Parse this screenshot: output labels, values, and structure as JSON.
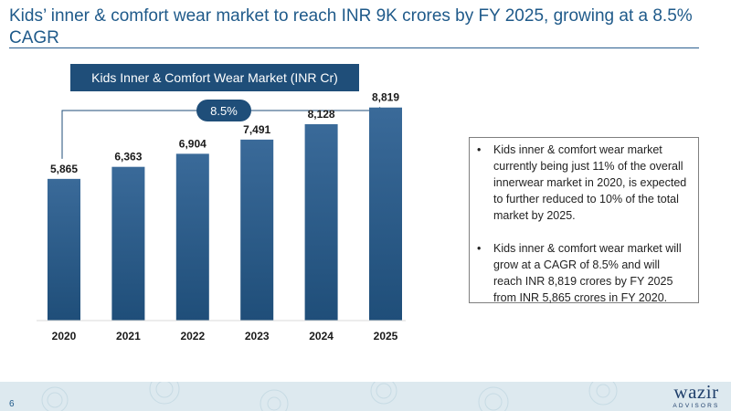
{
  "title": "Kids’ inner & comfort wear market to reach INR 9K crores by FY 2025, growing at a 8.5% CAGR",
  "chart_data": {
    "type": "bar",
    "title": "Kids Inner & Comfort Wear Market (INR Cr)",
    "categories": [
      "2020",
      "2021",
      "2022",
      "2023",
      "2024",
      "2025"
    ],
    "values": [
      5865,
      6363,
      6904,
      7491,
      8128,
      8819
    ],
    "value_labels": [
      "5,865",
      "6,363",
      "6,904",
      "7,491",
      "8,128",
      "8,819"
    ],
    "cagr_label": "8.5%",
    "ylim": [
      0,
      9300
    ],
    "bar_color": "#1f4e79",
    "bar_color_top": "#3a6a99",
    "grid": false
  },
  "notes": [
    "Kids inner & comfort wear market currently being just 11% of the overall innerwear market in 2020, is expected to further reduced to 10% of the total market by 2025.",
    "Kids inner & comfort wear market will grow at a CAGR of 8.5% and will reach INR 8,819 crores by FY 2025 from INR 5,865 crores in FY 2020."
  ],
  "footer": {
    "page_number": "6",
    "logo_main": "wazir",
    "logo_sub": "ADVISORS",
    "background": "#dde9ef"
  }
}
